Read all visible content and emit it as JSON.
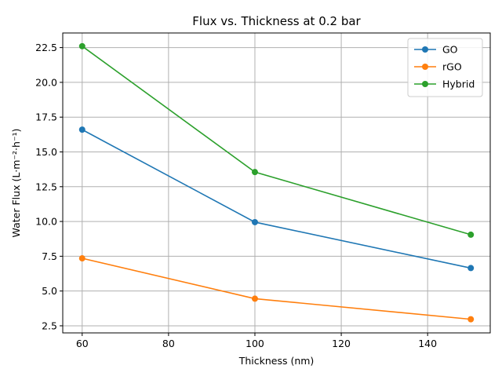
{
  "chart_data": {
    "type": "line",
    "title": "Flux vs. Thickness at 0.2 bar",
    "xlabel": "Thickness (nm)",
    "ylabel": "Water Flux (L·m⁻²·h⁻¹)",
    "xlim": [
      55.5,
      154.5
    ],
    "ylim": [
      1.99,
      23.55
    ],
    "xticks": [
      60,
      80,
      100,
      120,
      140
    ],
    "xtick_labels": [
      "60",
      "80",
      "100",
      "120",
      "140"
    ],
    "yticks": [
      2.5,
      5.0,
      7.5,
      10.0,
      12.5,
      15.0,
      17.5,
      20.0,
      22.5
    ],
    "ytick_labels": [
      "2.5",
      "5.0",
      "7.5",
      "10.0",
      "12.5",
      "15.0",
      "17.5",
      "20.0",
      "22.5"
    ],
    "grid": true,
    "legend_position": "top-right",
    "x": [
      60,
      100,
      150
    ],
    "series": [
      {
        "name": "GO",
        "color": "#1f77b4",
        "values": [
          16.6,
          9.95,
          6.65
        ]
      },
      {
        "name": "rGO",
        "color": "#ff7f0e",
        "values": [
          7.35,
          4.45,
          2.97
        ]
      },
      {
        "name": "Hybrid",
        "color": "#2ca02c",
        "values": [
          22.6,
          13.55,
          9.05
        ]
      }
    ]
  }
}
